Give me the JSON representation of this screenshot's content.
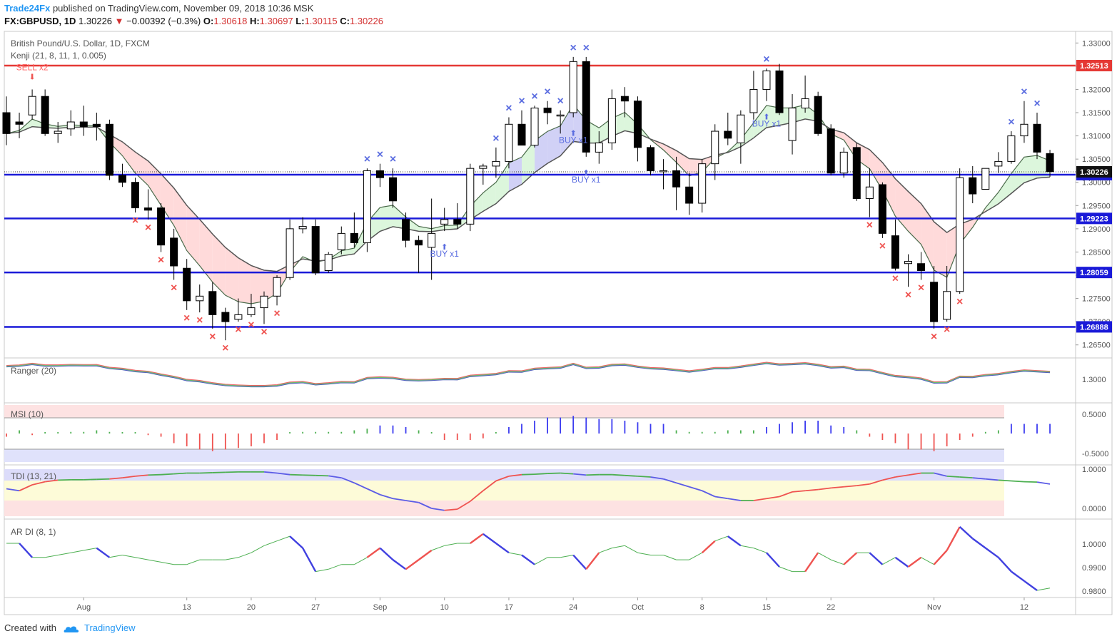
{
  "header": {
    "brand": "Trade24Fx",
    "published": " published on TradingView.com, November 09, 2018 10:36 MSK",
    "symbol": "FX:GBPUSD, 1D",
    "last": "1.30226",
    "change": "−0.00392 (−0.3%)",
    "open_label": "O:",
    "open": "1.30618",
    "high_label": "H:",
    "high": "1.30697",
    "low_label": "L:",
    "low": "1.30115",
    "close_label": "C:",
    "close": "1.30226"
  },
  "footer": {
    "created_with": "Created with",
    "tradingview": "TradingView"
  },
  "chart_data": {
    "type": "candlestick",
    "title": "British Pound/U.S. Dollar, 1D, FXCM",
    "indicator_label": "Kenji (21, 8, 11, 1, 0.005)",
    "x_tick_labels": [
      "Aug",
      "13",
      "20",
      "27",
      "Sep",
      "10",
      "17",
      "24",
      "Oct",
      "8",
      "15",
      "22",
      "Nov",
      "12"
    ],
    "x_tick_bar_index": [
      6,
      14,
      19,
      24,
      29,
      34,
      39,
      44,
      49,
      54,
      59,
      64,
      72,
      79
    ],
    "price_axis": {
      "min": 1.2625,
      "max": 1.3325,
      "ticks": [
        "1.33000",
        "1.32500",
        "1.32000",
        "1.31500",
        "1.31000",
        "1.30500",
        "1.30000",
        "1.29500",
        "1.29000",
        "1.28500",
        "1.28000",
        "1.27500",
        "1.27000",
        "1.26500"
      ]
    },
    "horizontal_lines": [
      {
        "price": 1.32513,
        "label": "1.32513",
        "color": "#e53935"
      },
      {
        "price": 1.30165,
        "label": "1.30165",
        "color": "#1a1ad8"
      },
      {
        "price": 1.29223,
        "label": "1.29223",
        "color": "#1a1ad8"
      },
      {
        "price": 1.28059,
        "label": "1.28059",
        "color": "#1a1ad8"
      },
      {
        "price": 1.26888,
        "label": "1.26888",
        "color": "#1a1ad8"
      }
    ],
    "last_price": {
      "price": 1.30226,
      "label": "1.30226"
    },
    "signals": [
      {
        "text": "SELL x2",
        "bar": 2,
        "color": "#ff6666"
      },
      {
        "text": "BUY x1",
        "bar": 34,
        "color": "#5b6de0"
      },
      {
        "text": "BUY x1",
        "bar": 44,
        "color": "#5b6de0"
      },
      {
        "text": "BUY x1",
        "bar": 45,
        "color": "#5b6de0"
      },
      {
        "text": "BUY x1",
        "bar": 59,
        "color": "#5b6de0"
      }
    ],
    "candles": [
      [
        1.315,
        1.3185,
        1.308,
        1.3105
      ],
      [
        1.313,
        1.315,
        1.3095,
        1.3125
      ],
      [
        1.3145,
        1.32,
        1.3135,
        1.3185
      ],
      [
        1.3185,
        1.32,
        1.31,
        1.3105
      ],
      [
        1.3105,
        1.313,
        1.3085,
        1.311
      ],
      [
        1.3115,
        1.3155,
        1.31,
        1.313
      ],
      [
        1.313,
        1.3165,
        1.31,
        1.312
      ],
      [
        1.3125,
        1.315,
        1.309,
        1.312
      ],
      [
        1.3125,
        1.3135,
        1.3005,
        1.3015
      ],
      [
        1.3015,
        1.304,
        1.299,
        1.3
      ],
      [
        1.3,
        1.301,
        1.2935,
        1.2945
      ],
      [
        1.2945,
        1.2985,
        1.292,
        1.294
      ],
      [
        1.2945,
        1.2955,
        1.285,
        1.2865
      ],
      [
        1.288,
        1.29,
        1.279,
        1.282
      ],
      [
        1.2815,
        1.2835,
        1.2725,
        1.2745
      ],
      [
        1.2745,
        1.278,
        1.272,
        1.2755
      ],
      [
        1.2765,
        1.2785,
        1.2685,
        1.2715
      ],
      [
        1.272,
        1.273,
        1.266,
        1.27
      ],
      [
        1.2705,
        1.275,
        1.27,
        1.2715
      ],
      [
        1.2715,
        1.276,
        1.271,
        1.273
      ],
      [
        1.273,
        1.2765,
        1.2695,
        1.2755
      ],
      [
        1.2755,
        1.28,
        1.2735,
        1.2795
      ],
      [
        1.2795,
        1.292,
        1.279,
        1.29
      ],
      [
        1.29,
        1.2925,
        1.289,
        1.2905
      ],
      [
        1.2905,
        1.292,
        1.28,
        1.2805
      ],
      [
        1.281,
        1.285,
        1.2805,
        1.2845
      ],
      [
        1.2855,
        1.2905,
        1.2845,
        1.289
      ],
      [
        1.289,
        1.2935,
        1.286,
        1.287
      ],
      [
        1.287,
        1.303,
        1.285,
        1.3025
      ],
      [
        1.3025,
        1.304,
        1.299,
        1.301
      ],
      [
        1.301,
        1.303,
        1.2945,
        1.296
      ],
      [
        1.292,
        1.2935,
        1.286,
        1.2875
      ],
      [
        1.2875,
        1.2885,
        1.2805,
        1.2865
      ],
      [
        1.286,
        1.2965,
        1.279,
        1.289
      ],
      [
        1.291,
        1.2945,
        1.2895,
        1.292
      ],
      [
        1.292,
        1.2955,
        1.29,
        1.291
      ],
      [
        1.291,
        1.304,
        1.2895,
        1.303
      ],
      [
        1.303,
        1.304,
        1.2995,
        1.3035
      ],
      [
        1.3035,
        1.3075,
        1.301,
        1.3045
      ],
      [
        1.3045,
        1.314,
        1.303,
        1.3125
      ],
      [
        1.3125,
        1.3155,
        1.3085,
        1.308
      ],
      [
        1.308,
        1.3165,
        1.3075,
        1.316
      ],
      [
        1.316,
        1.3175,
        1.3125,
        1.315
      ],
      [
        1.3145,
        1.3155,
        1.3105,
        1.3145
      ],
      [
        1.315,
        1.327,
        1.314,
        1.326
      ],
      [
        1.326,
        1.327,
        1.3055,
        1.3065
      ],
      [
        1.3065,
        1.311,
        1.304,
        1.3085
      ],
      [
        1.3085,
        1.32,
        1.307,
        1.318
      ],
      [
        1.3185,
        1.3205,
        1.314,
        1.3175
      ],
      [
        1.3175,
        1.3185,
        1.3045,
        1.3075
      ],
      [
        1.3075,
        1.308,
        1.3015,
        1.3025
      ],
      [
        1.3025,
        1.305,
        1.2985,
        1.3025
      ],
      [
        1.3025,
        1.3055,
        1.294,
        1.299
      ],
      [
        1.299,
        1.302,
        1.293,
        1.2955
      ],
      [
        1.2955,
        1.305,
        1.2935,
        1.304
      ],
      [
        1.304,
        1.3125,
        1.3005,
        1.311
      ],
      [
        1.311,
        1.315,
        1.308,
        1.3095
      ],
      [
        1.3085,
        1.3155,
        1.304,
        1.3145
      ],
      [
        1.315,
        1.324,
        1.3135,
        1.32
      ],
      [
        1.32,
        1.3245,
        1.3175,
        1.324
      ],
      [
        1.324,
        1.3255,
        1.3145,
        1.315
      ],
      [
        1.309,
        1.319,
        1.306,
        1.316
      ],
      [
        1.316,
        1.323,
        1.315,
        1.318
      ],
      [
        1.3185,
        1.3195,
        1.31,
        1.3105
      ],
      [
        1.3115,
        1.3125,
        1.3015,
        1.302
      ],
      [
        1.302,
        1.3075,
        1.301,
        1.3065
      ],
      [
        1.3075,
        1.3085,
        1.296,
        1.2965
      ],
      [
        1.2965,
        1.303,
        1.2925,
        1.299
      ],
      [
        1.2995,
        1.3,
        1.288,
        1.289
      ],
      [
        1.2885,
        1.292,
        1.281,
        1.2815
      ],
      [
        1.2825,
        1.2845,
        1.2775,
        1.283
      ],
      [
        1.2825,
        1.285,
        1.279,
        1.281
      ],
      [
        1.2785,
        1.282,
        1.2685,
        1.27
      ],
      [
        1.2705,
        1.282,
        1.27,
        1.2765
      ],
      [
        1.2765,
        1.303,
        1.276,
        1.301
      ],
      [
        1.301,
        1.3035,
        1.2955,
        1.2975
      ],
      [
        1.2985,
        1.303,
        1.2985,
        1.303
      ],
      [
        1.3035,
        1.3065,
        1.302,
        1.3045
      ],
      [
        1.3045,
        1.311,
        1.304,
        1.31
      ],
      [
        1.31,
        1.3175,
        1.3085,
        1.3125
      ],
      [
        1.3125,
        1.315,
        1.305,
        1.3065
      ],
      [
        1.3062,
        1.307,
        1.3012,
        1.3023
      ]
    ],
    "panels": [
      {
        "name": "Ranger (20)",
        "ticks": [
          "1.3000"
        ]
      },
      {
        "name": "MSI (10)",
        "ticks": [
          "0.5000",
          "-0.5000"
        ]
      },
      {
        "name": "TDI (13, 21)",
        "ticks": [
          "1.0000",
          "0.0000"
        ]
      },
      {
        "name": "AR DI (8, 1)",
        "ticks": [
          "1.0000",
          "0.9900",
          "0.9800"
        ]
      }
    ],
    "msi_values": [
      -0.1,
      0.1,
      -0.05,
      0.02,
      0.03,
      0.05,
      0.05,
      0.1,
      0.05,
      0,
      0,
      -0.05,
      -0.1,
      -0.3,
      -0.4,
      -0.5,
      -0.55,
      -0.5,
      -0.45,
      -0.4,
      -0.3,
      -0.2,
      0,
      0.05,
      0.05,
      0.05,
      0.05,
      0.1,
      0.15,
      0.25,
      0.25,
      0.2,
      0.1,
      0,
      -0.2,
      -0.2,
      -0.2,
      -0.15,
      0,
      0.2,
      0.3,
      0.4,
      0.5,
      0.5,
      0.55,
      0.5,
      0.45,
      0.45,
      0.4,
      0.35,
      0.3,
      0.3,
      0.1,
      0.05,
      0.05,
      0.05,
      0.1,
      0.1,
      0.1,
      0.2,
      0.3,
      0.35,
      0.4,
      0.4,
      0.25,
      0.2,
      0.1,
      -0.1,
      -0.2,
      -0.3,
      -0.5,
      -0.5,
      -0.55,
      -0.4,
      -0.2,
      -0.1,
      0.05,
      0.1,
      0.3,
      0.3,
      0.3,
      0.3
    ],
    "tdi_values": [
      0.5,
      0.45,
      0.6,
      0.68,
      0.72,
      0.73,
      0.73,
      0.74,
      0.75,
      0.78,
      0.82,
      0.85,
      0.86,
      0.88,
      0.9,
      0.9,
      0.91,
      0.92,
      0.93,
      0.93,
      0.93,
      0.9,
      0.86,
      0.85,
      0.84,
      0.83,
      0.78,
      0.65,
      0.5,
      0.35,
      0.25,
      0.2,
      0.15,
      0.0,
      -0.05,
      -0.02,
      0.18,
      0.45,
      0.7,
      0.82,
      0.86,
      0.87,
      0.89,
      0.9,
      0.88,
      0.85,
      0.86,
      0.86,
      0.84,
      0.82,
      0.8,
      0.75,
      0.65,
      0.55,
      0.45,
      0.3,
      0.25,
      0.2,
      0.2,
      0.25,
      0.3,
      0.42,
      0.45,
      0.48,
      0.52,
      0.55,
      0.58,
      0.62,
      0.72,
      0.8,
      0.85,
      0.9,
      0.9,
      0.82,
      0.8,
      0.78,
      0.75,
      0.72,
      0.7,
      0.68,
      0.67,
      0.62
    ],
    "ardi_values": [
      1.0,
      1.0,
      0.994,
      0.994,
      0.995,
      0.996,
      0.997,
      0.998,
      0.994,
      0.995,
      0.994,
      0.993,
      0.992,
      0.991,
      0.991,
      0.993,
      0.993,
      0.993,
      0.994,
      0.996,
      0.999,
      1.001,
      1.003,
      0.998,
      0.988,
      0.989,
      0.991,
      0.991,
      0.994,
      0.998,
      0.993,
      0.989,
      0.993,
      0.997,
      0.999,
      1.0,
      1.0,
      1.004,
      1.0,
      0.996,
      0.995,
      0.991,
      0.994,
      0.994,
      0.995,
      0.989,
      0.996,
      0.998,
      0.999,
      0.996,
      0.995,
      0.995,
      0.993,
      0.993,
      0.996,
      1.001,
      1.003,
      0.999,
      0.998,
      0.996,
      0.99,
      0.988,
      0.988,
      0.996,
      0.993,
      0.991,
      0.996,
      0.996,
      0.991,
      0.994,
      0.99,
      0.994,
      0.991,
      0.997,
      1.007,
      1.002,
      0.998,
      0.994,
      0.988,
      0.984,
      0.98,
      0.981
    ]
  }
}
